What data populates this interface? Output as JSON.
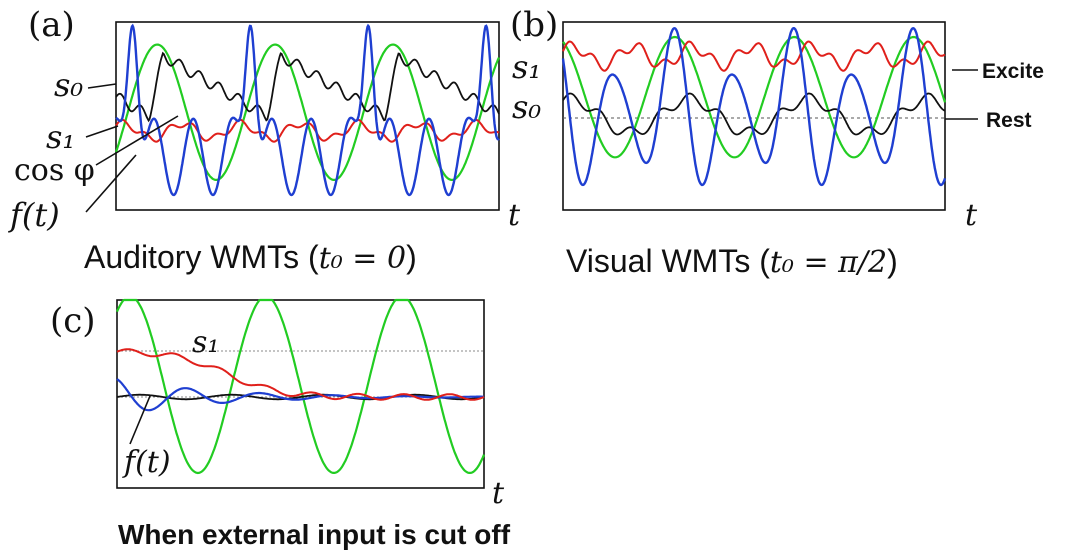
{
  "colors": {
    "s0": "#111111",
    "s1": "#e0201b",
    "cos_phi": "#22cc22",
    "f_t": "#1f3fd1",
    "frame": "#111111",
    "reference": "#888888"
  },
  "panels": [
    {
      "id": "a",
      "panel_label": "(a)",
      "caption_text": "Auditory WMTs (",
      "caption_math": "t₀ = 0",
      "caption_close": ")",
      "x_label": "t",
      "curve_labels": {
        "s0": "s₀",
        "s1": "s₁",
        "cos_phi": "cos φ",
        "f_t": "f(t)"
      }
    },
    {
      "id": "b",
      "panel_label": "(b)",
      "caption_text": "Visual WMTs (",
      "caption_math": "t₀ = π/2",
      "caption_close": ")",
      "x_label": "t",
      "curve_labels": {
        "s1": "s₁",
        "s0": "s₀"
      },
      "side_labels": {
        "excite": "Excite",
        "rest": "Rest"
      }
    },
    {
      "id": "c",
      "panel_label": "(c)",
      "caption_text": "When external input is cut off",
      "x_label": "t",
      "curve_labels": {
        "s1": "s₁",
        "f_t": "f(t)"
      }
    }
  ],
  "chart_data": [
    {
      "type": "line",
      "panel": "(a)",
      "title": "Auditory WMTs (t₀ = 0)",
      "xlabel": "t",
      "ylabel": "",
      "axes_ticks": false,
      "x_cycles": 3.25,
      "series": [
        {
          "name": "s₀",
          "color_key": "s0",
          "shape": "sawtooth-like, sharp rise then slow decay",
          "baseline": 0.58,
          "period_cycles": 3
        },
        {
          "name": "s₁",
          "color_key": "s1",
          "shape": "small ripple",
          "baseline": 0.44,
          "amplitude": 0.04
        },
        {
          "name": "cos φ",
          "color_key": "cos_phi",
          "shape": "cosine",
          "center": 0.52,
          "amplitude": 0.34
        },
        {
          "name": "f(t)",
          "color_key": "f_t",
          "shape": "large peak followed by two smaller oscillations per cycle",
          "amplitude": 0.5
        }
      ]
    },
    {
      "type": "line",
      "panel": "(b)",
      "title": "Visual WMTs (t₀ = π/2)",
      "xlabel": "t",
      "ylabel": "",
      "axes_ticks": false,
      "reference_lines": [
        "Rest"
      ],
      "series": [
        {
          "name": "s₁",
          "color_key": "s1",
          "shape": "ripple above rest, level labeled Excite",
          "baseline": 0.82
        },
        {
          "name": "s₀",
          "color_key": "s0",
          "shape": "oscillation around rest",
          "baseline": 0.5
        },
        {
          "name": "cos φ",
          "color_key": "cos_phi",
          "shape": "cosine",
          "center": 0.6,
          "amplitude": 0.3
        },
        {
          "name": "f(t)",
          "color_key": "f_t",
          "shape": "large oscillation reaching bottom of frame",
          "amplitude": 0.5
        }
      ]
    },
    {
      "type": "line",
      "panel": "(c)",
      "title": "When external input is cut off",
      "xlabel": "t",
      "ylabel": "",
      "axes_ticks": false,
      "reference_lines": [
        "upper dashed level",
        "lower dashed level"
      ],
      "series": [
        {
          "name": "s₁",
          "color_key": "s1",
          "shape": "decays from upper level to lower level"
        },
        {
          "name": "cos φ",
          "color_key": "cos_phi",
          "shape": "cosine, persists",
          "center": 0.55,
          "amplitude": 0.47
        },
        {
          "name": "f(t)",
          "color_key": "f_t",
          "shape": "decaying oscillation converging to lower level"
        },
        {
          "name": "s₀",
          "color_key": "s0",
          "shape": "near-flat at lower level"
        }
      ]
    }
  ]
}
